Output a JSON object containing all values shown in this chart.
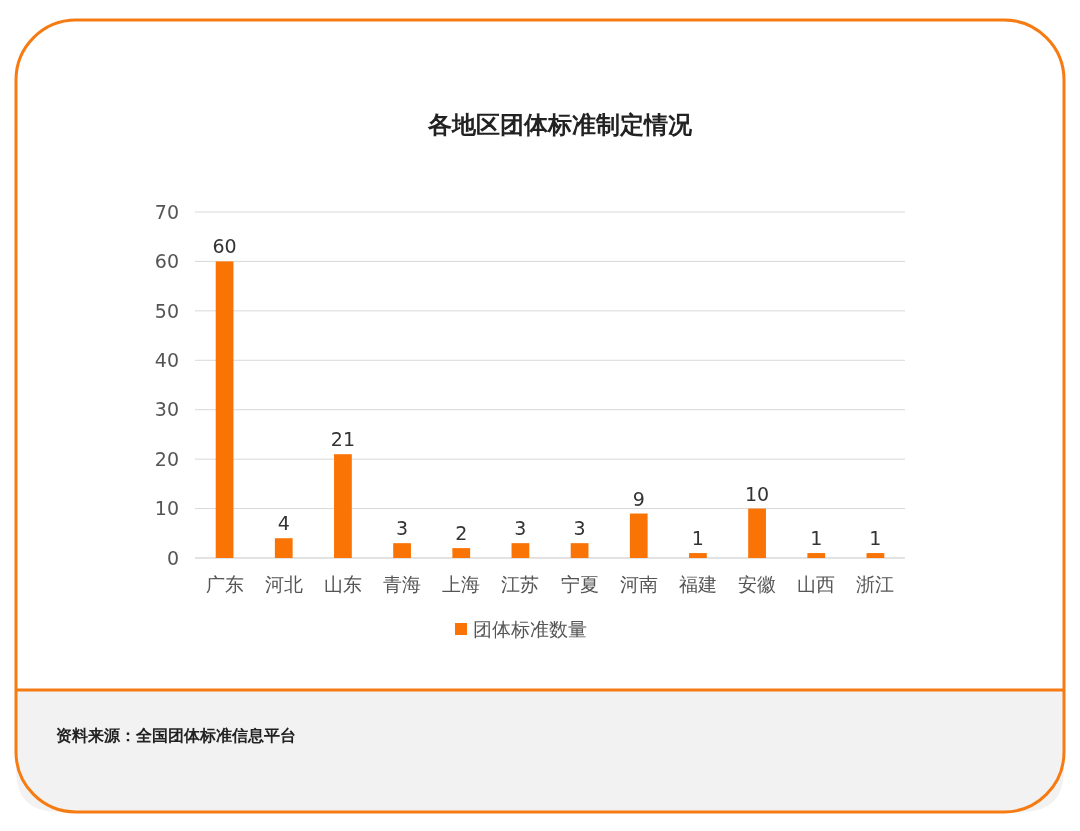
{
  "chart_data": {
    "type": "bar",
    "title": "各地区团体标准制定情况",
    "categories": [
      "广东",
      "河北",
      "山东",
      "青海",
      "上海",
      "江苏",
      "宁夏",
      "河南",
      "福建",
      "安徽",
      "山西",
      "浙江"
    ],
    "series": [
      {
        "name": "团体标准数量",
        "color": "#fa7305",
        "values": [
          60,
          4,
          21,
          3,
          2,
          3,
          3,
          9,
          1,
          10,
          1,
          1
        ]
      }
    ],
    "ylim": [
      0,
      70
    ],
    "yticks": [
      0,
      10,
      20,
      30,
      40,
      50,
      60,
      70
    ],
    "grid": "y",
    "legend": "bottom",
    "data_labels": true,
    "annotations": [
      "资料来源：全国团体标准信息平台"
    ]
  }
}
